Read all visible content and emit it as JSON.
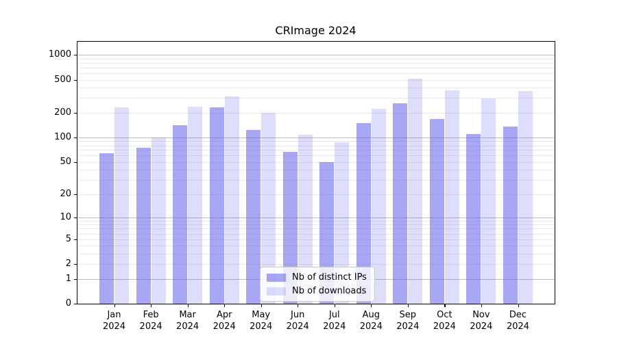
{
  "title": "CRImage 2024",
  "legend": {
    "items": [
      {
        "label": "Nb of distinct IPs",
        "key": "distinct_ips"
      },
      {
        "label": "Nb of downloads",
        "key": "downloads"
      }
    ]
  },
  "axes": {
    "y_tick_labels": [
      "1000",
      "500",
      "200",
      "100",
      "50",
      "20",
      "10",
      "5",
      "2",
      "1",
      "0"
    ],
    "months": [
      "Jan",
      "Feb",
      "Mar",
      "Apr",
      "May",
      "Jun",
      "Jul",
      "Aug",
      "Sep",
      "Oct",
      "Nov",
      "Dec"
    ],
    "year": "2024"
  },
  "colors": {
    "bar_distinct_ips": "rgba(88,88,238,0.53)",
    "bar_downloads": "rgba(88,88,238,0.20)",
    "grid_major": "#bdbdbd",
    "grid_minor": "#e9e9e9",
    "spine": "#000000"
  },
  "chart_data": {
    "type": "bar",
    "title": "CRImage 2024",
    "yscale": "log1p",
    "categories": [
      "Jan 2024",
      "Feb 2024",
      "Mar 2024",
      "Apr 2024",
      "May 2024",
      "Jun 2024",
      "Jul 2024",
      "Aug 2024",
      "Sep 2024",
      "Oct 2024",
      "Nov 2024",
      "Dec 2024"
    ],
    "series": [
      {
        "name": "Nb of distinct IPs",
        "values": [
          64,
          75,
          140,
          230,
          124,
          67,
          50,
          150,
          258,
          166,
          110,
          135
        ]
      },
      {
        "name": "Nb of downloads",
        "values": [
          230,
          100,
          235,
          315,
          200,
          107,
          88,
          221,
          515,
          370,
          297,
          363
        ]
      }
    ],
    "xlabel": "",
    "ylabel": "",
    "y_tick_values": [
      0,
      1,
      2,
      5,
      10,
      20,
      50,
      100,
      200,
      500,
      1000
    ],
    "ylim": [
      0,
      1460
    ],
    "grid": "horizontal: major lines at 1,10,100,1000; minor log lines at 2-9 multiples",
    "legend_position": "lower center, inside plot"
  }
}
